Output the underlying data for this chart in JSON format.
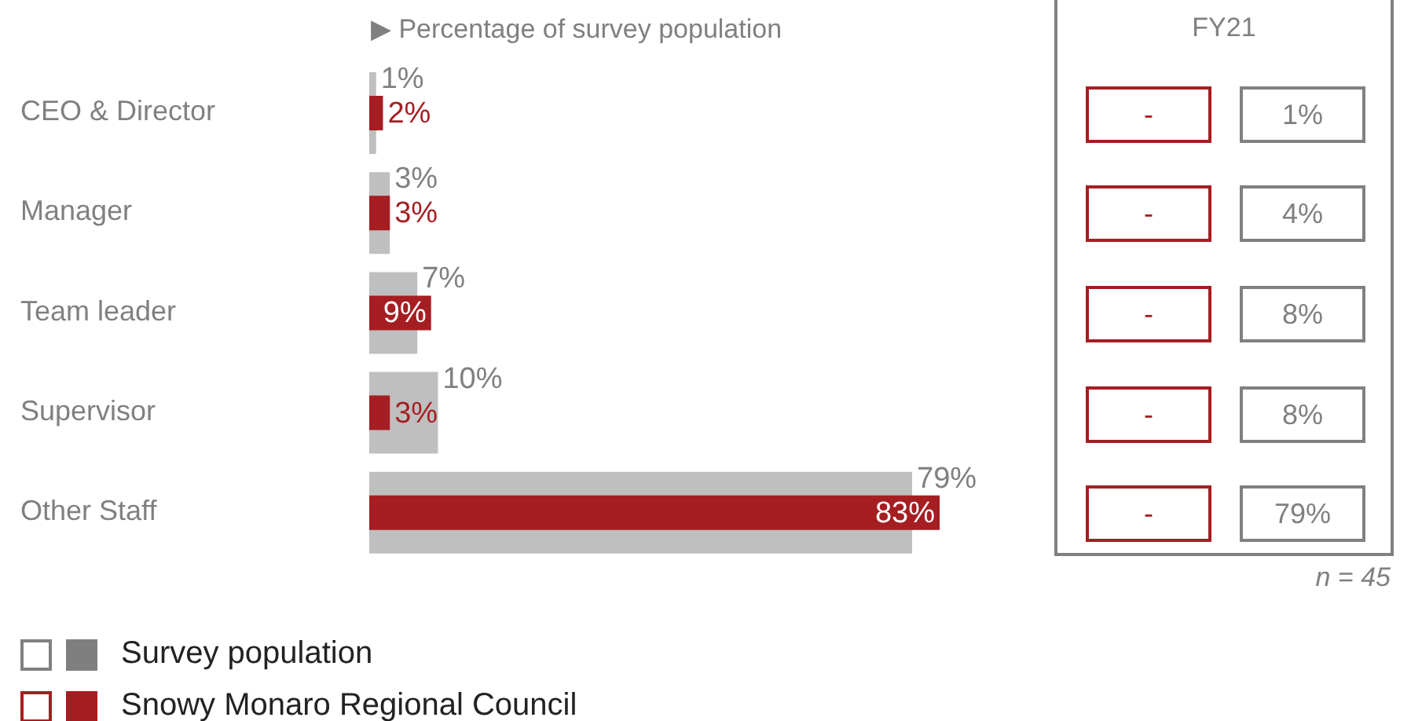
{
  "chart_data": [
    {
      "type": "bar",
      "orientation": "horizontal",
      "xlabel": "▶ Percentage of survey population",
      "categories": [
        "CEO & Director",
        "Manager",
        "Team leader",
        "Supervisor",
        "Other Staff"
      ],
      "series": [
        {
          "name": "Survey population",
          "color": "#bfbfbf",
          "values": [
            1,
            3,
            7,
            10,
            79
          ],
          "value_labels": [
            "1%",
            "3%",
            "7%",
            "10%",
            "79%"
          ]
        },
        {
          "name": "Snowy Monaro Regional Council",
          "color": "#a51e22",
          "values": [
            2,
            3,
            9,
            3,
            83
          ],
          "value_labels": [
            "2%",
            "3%",
            "9%",
            "3%",
            "83%"
          ]
        }
      ],
      "legend": "bottom"
    },
    {
      "type": "other",
      "title": "FY21",
      "cell_labels": [
        [
          "-",
          "1%"
        ],
        [
          "-",
          "4%"
        ],
        [
          "-",
          "8%"
        ],
        [
          "-",
          "8%"
        ],
        [
          "-",
          "79%"
        ]
      ],
      "annotations": [
        "n = 45"
      ]
    }
  ]
}
